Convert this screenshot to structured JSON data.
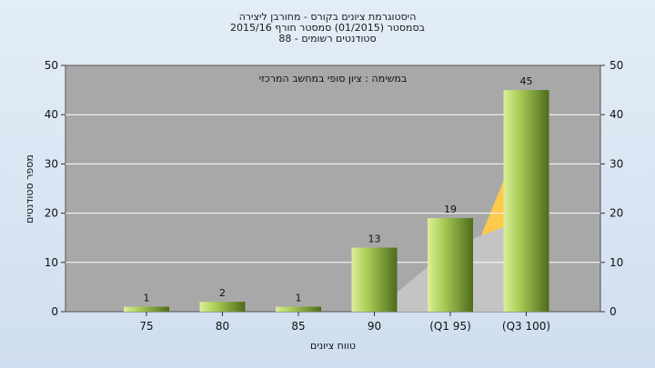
{
  "chart_data": {
    "type": "bar",
    "title_lines": [
      "היסטוגרמת ציונים בקורס - מחורבן ליצירה",
      "בסמסטר  (01/2015)  סמסטר חורף 2015/16",
      "88 - סטודנטים רשומים"
    ],
    "annotation": "במשימה : ציון סופי במחשב המרכזי",
    "xlabel": "טווח ציונים",
    "ylabel": "מספר סטודנטים",
    "categories": [
      "75",
      "80",
      "85",
      "90",
      "(Q1 95)",
      "(Q3 100)"
    ],
    "values": [
      1,
      2,
      1,
      13,
      19,
      45
    ],
    "data_labels": [
      "1",
      "2",
      "1",
      "13",
      "19",
      "45"
    ],
    "yticks": [
      "0",
      "10",
      "20",
      "30",
      "40",
      "50"
    ],
    "ylim": [
      0,
      50
    ],
    "grid": "horizontal",
    "background_area": {
      "gray_values": [
        0,
        0,
        0,
        0,
        13,
        19
      ],
      "yellow_values": [
        0,
        0,
        0,
        0,
        0,
        38
      ]
    },
    "colors": {
      "plot_background": "#a8a8a8",
      "bar_light": "#c6e07c",
      "bar_dark": "#4d6b1c",
      "yellow_area": "#ffc94d",
      "gray_area": "#c4c4c4",
      "page_background": "#d9e6f2"
    }
  }
}
